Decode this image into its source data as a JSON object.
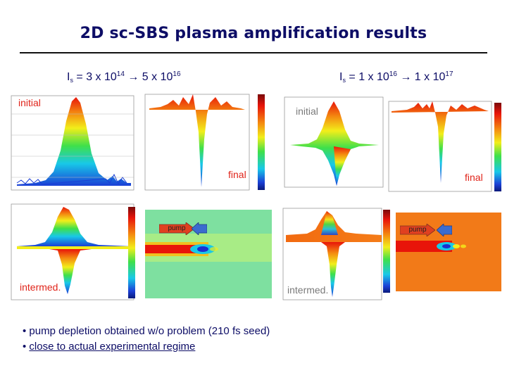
{
  "title": "2D sc-SBS plasma amplification results",
  "left_header": {
    "base": "I",
    "sub": "s",
    "text1": " = 3 x 10",
    "exp1": "14",
    "arrow": " → 5 x 10",
    "exp2": "16"
  },
  "right_header": {
    "base": "I",
    "sub": "s",
    "text1": " = 1 x 10",
    "exp1": "16",
    "arrow": " → 1 x 10",
    "exp2": "17"
  },
  "labels": {
    "initial": "initial",
    "final": "final",
    "intermed": "intermed.",
    "pump": "pump"
  },
  "colors": {
    "title": "#0d0d66",
    "label_red": "#e0241a",
    "label_gray": "#7a7a7a",
    "arrow_red": "#e04020",
    "arrow_blue": "#3a6ccf"
  },
  "bullets": [
    "pump depletion obtained w/o problem (210 fs seed)",
    "close to actual experimental regime"
  ]
}
